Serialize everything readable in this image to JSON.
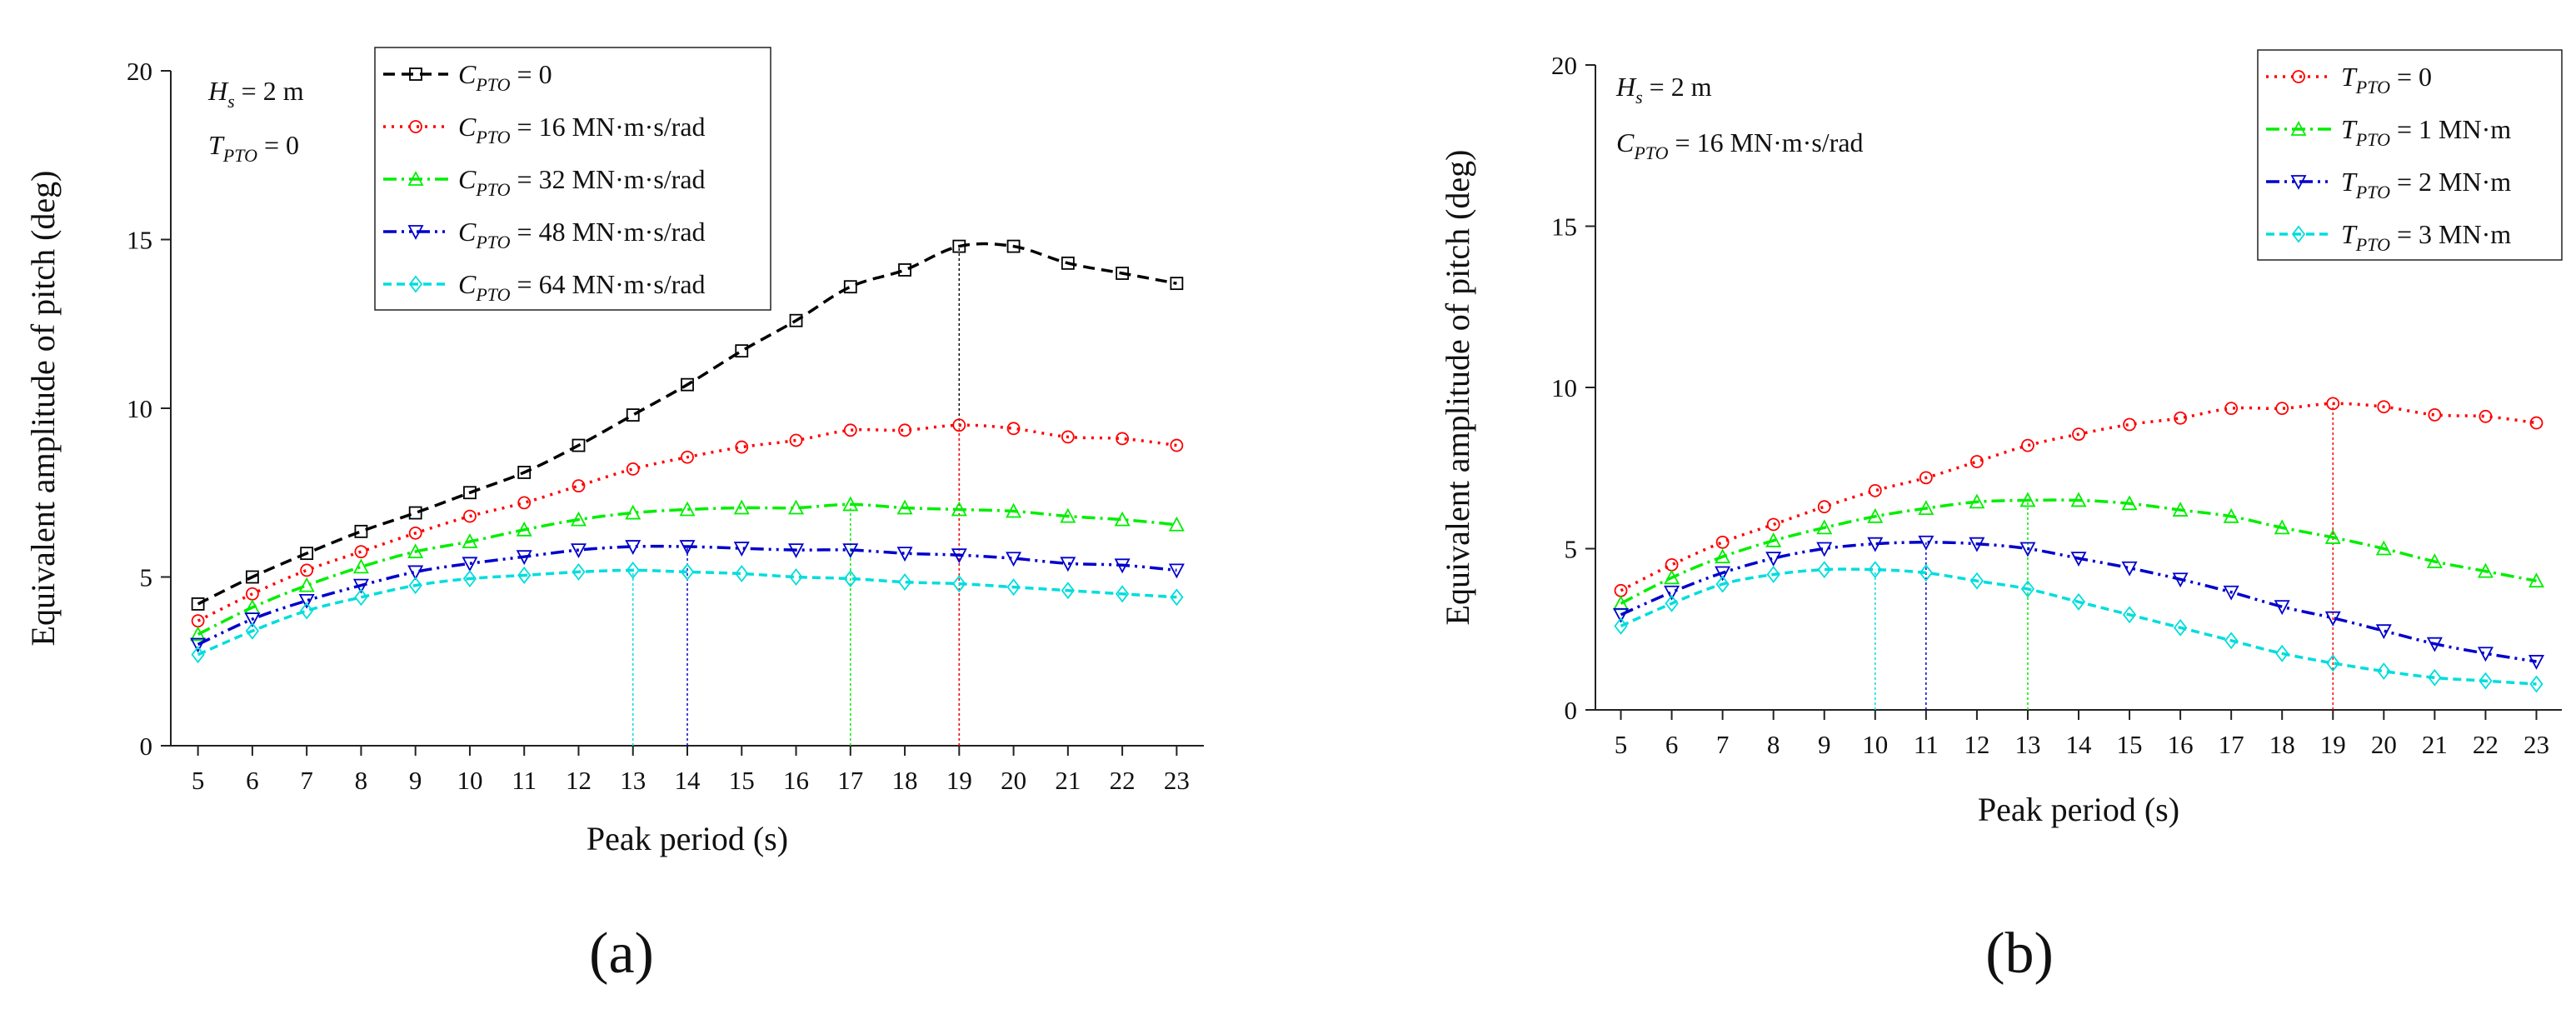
{
  "panels": [
    "(a)",
    "(b)"
  ],
  "chart_data": [
    {
      "type": "line",
      "panel": "(a)",
      "xlabel": "Peak period (s)",
      "ylabel": "Equivalent amplitude of pitch (deg)",
      "x": [
        5,
        6,
        7,
        8,
        9,
        10,
        11,
        12,
        13,
        14,
        15,
        16,
        17,
        18,
        19,
        20,
        21,
        22,
        23
      ],
      "xlim": [
        4.5,
        23.5
      ],
      "ylim": [
        0,
        20
      ],
      "yticks": [
        0,
        5,
        10,
        15,
        20
      ],
      "annotations": [
        {
          "sym": "H",
          "sub": "s",
          "rest": " = 2 m"
        },
        {
          "sym": "T",
          "sub": "PTO",
          "rest": " = 0"
        }
      ],
      "legend_position": "top-center",
      "series": [
        {
          "sym": "C",
          "sub": "PTO",
          "rest": " = 0",
          "color": "#000000",
          "dash": "14,8",
          "marker": "square",
          "values": [
            4.2,
            5.0,
            5.7,
            6.35,
            6.9,
            7.5,
            8.1,
            8.9,
            9.8,
            10.7,
            11.7,
            12.6,
            13.6,
            14.1,
            14.8,
            14.8,
            14.3,
            14.0,
            13.7
          ]
        },
        {
          "sym": "C",
          "sub": "PTO",
          "rest": " = 16 MN·m·s/rad",
          "color": "#ff0000",
          "dash": "3,7",
          "marker": "circle",
          "values": [
            3.7,
            4.5,
            5.2,
            5.75,
            6.3,
            6.8,
            7.2,
            7.7,
            8.2,
            8.55,
            8.85,
            9.05,
            9.35,
            9.35,
            9.5,
            9.4,
            9.15,
            9.1,
            8.9
          ]
        },
        {
          "sym": "C",
          "sub": "PTO",
          "rest": " = 32 MN·m·s/rad",
          "color": "#00ee00",
          "dash": "16,6,3,6",
          "marker": "triangle-up",
          "values": [
            3.3,
            4.1,
            4.75,
            5.3,
            5.75,
            6.05,
            6.4,
            6.7,
            6.9,
            7.0,
            7.05,
            7.05,
            7.15,
            7.05,
            7.0,
            6.95,
            6.8,
            6.7,
            6.55
          ]
        },
        {
          "sym": "C",
          "sub": "PTO",
          "rest": " = 48 MN·m·s/rad",
          "color": "#0000cc",
          "dash": "16,6,3,6,3,6",
          "marker": "triangle-down",
          "values": [
            3.0,
            3.75,
            4.3,
            4.75,
            5.15,
            5.4,
            5.6,
            5.8,
            5.9,
            5.9,
            5.85,
            5.8,
            5.8,
            5.7,
            5.65,
            5.55,
            5.4,
            5.35,
            5.2
          ]
        },
        {
          "sym": "C",
          "sub": "PTO",
          "rest": " = 64 MN·m·s/rad",
          "color": "#00dddd",
          "dash": "10,6",
          "marker": "diamond",
          "values": [
            2.7,
            3.4,
            4.0,
            4.4,
            4.75,
            4.95,
            5.05,
            5.15,
            5.2,
            5.15,
            5.1,
            5.0,
            4.95,
            4.85,
            4.8,
            4.7,
            4.6,
            4.5,
            4.4
          ]
        }
      ],
      "vlines": [
        {
          "x": 19,
          "color": "#000000"
        },
        {
          "x": 19,
          "color": "#ff0000"
        },
        {
          "x": 17,
          "color": "#00ee00"
        },
        {
          "x": 14,
          "color": "#0000cc"
        },
        {
          "x": 13,
          "color": "#00dddd"
        }
      ]
    },
    {
      "type": "line",
      "panel": "(b)",
      "xlabel": "Peak period (s)",
      "ylabel": "Equivalent amplitude of pitch (deg)",
      "x": [
        5,
        6,
        7,
        8,
        9,
        10,
        11,
        12,
        13,
        14,
        15,
        16,
        17,
        18,
        19,
        20,
        21,
        22,
        23
      ],
      "xlim": [
        4.5,
        23.5
      ],
      "ylim": [
        0,
        20
      ],
      "yticks": [
        0,
        5,
        10,
        15,
        20
      ],
      "annotations": [
        {
          "sym": "H",
          "sub": "s",
          "rest": " = 2 m"
        },
        {
          "sym": "C",
          "sub": "PTO",
          "rest": " = 16 MN·m·s/rad"
        }
      ],
      "legend_position": "top-right",
      "series": [
        {
          "sym": "T",
          "sub": "PTO",
          "rest": " = 0",
          "color": "#ff0000",
          "dash": "3,7",
          "marker": "circle",
          "values": [
            3.7,
            4.5,
            5.2,
            5.75,
            6.3,
            6.8,
            7.2,
            7.7,
            8.2,
            8.55,
            8.85,
            9.05,
            9.35,
            9.35,
            9.5,
            9.4,
            9.15,
            9.1,
            8.9
          ]
        },
        {
          "sym": "T",
          "sub": "PTO",
          "rest": " = 1 MN·m",
          "color": "#00ee00",
          "dash": "16,6,3,6",
          "marker": "triangle-up",
          "values": [
            3.3,
            4.1,
            4.75,
            5.25,
            5.65,
            6.0,
            6.25,
            6.45,
            6.5,
            6.5,
            6.4,
            6.2,
            6.0,
            5.65,
            5.35,
            5.0,
            4.6,
            4.3,
            4.0
          ]
        },
        {
          "sym": "T",
          "sub": "PTO",
          "rest": " = 2 MN·m",
          "color": "#0000cc",
          "dash": "16,6,3,6,3,6",
          "marker": "triangle-down",
          "values": [
            2.95,
            3.65,
            4.25,
            4.7,
            5.0,
            5.15,
            5.2,
            5.15,
            5.0,
            4.7,
            4.4,
            4.05,
            3.65,
            3.2,
            2.85,
            2.45,
            2.05,
            1.75,
            1.5
          ]
        },
        {
          "sym": "T",
          "sub": "PTO",
          "rest": " = 3 MN·m",
          "color": "#00dddd",
          "dash": "10,6",
          "marker": "diamond",
          "values": [
            2.6,
            3.3,
            3.9,
            4.2,
            4.35,
            4.35,
            4.25,
            4.0,
            3.75,
            3.35,
            2.95,
            2.55,
            2.15,
            1.75,
            1.45,
            1.2,
            1.0,
            0.9,
            0.8
          ]
        }
      ],
      "vlines": [
        {
          "x": 19,
          "color": "#ff0000"
        },
        {
          "x": 13,
          "color": "#00ee00"
        },
        {
          "x": 11,
          "color": "#0000cc"
        },
        {
          "x": 10,
          "color": "#00dddd"
        }
      ]
    }
  ]
}
